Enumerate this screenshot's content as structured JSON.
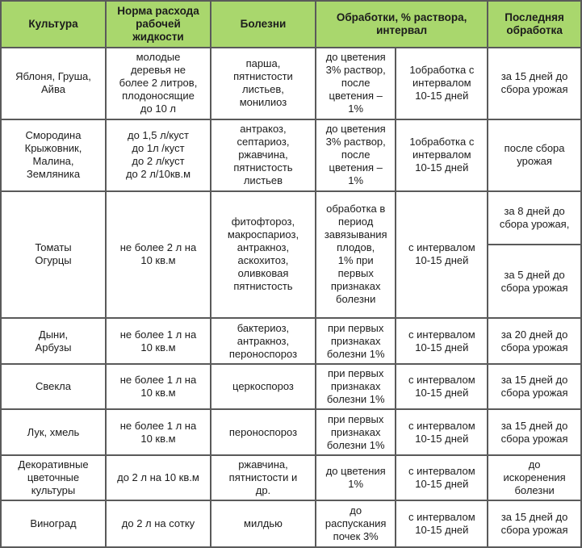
{
  "table": {
    "headers": [
      "Культура",
      "Норма расхода\nрабочей\nжидкости",
      "Болезни",
      "Обработки, % раствора,\nинтервал",
      "Последняя\nобработка"
    ],
    "rows": [
      {
        "crop": "Яблоня, Груша,\nАйва",
        "rate": "молодые\nдеревья не\nболее 2 литров,\nплодоносящие\nдо 10 л",
        "diseases": "парша,\nпятнистости\nлистьев,\nмонилиоз",
        "solution": "до цветения\n3% раствор,\nпосле\nцветения –\n1%",
        "interval": "1обработка с\nинтервалом\n10-15 дней",
        "last": "за 15 дней до\nсбора урожая"
      },
      {
        "crop": "Смородина\nКрыжовник,\nМалина,\nЗемляника",
        "rate": "до 1,5 л/куст\nдо 1л /куст\nдо 2 л/куст\nдо 2 л/10кв.м",
        "diseases": "антракоз,\nсептариоз,\nржавчина,\nпятнистость\nлистьев",
        "solution": "до цветения\n3% раствор,\nпосле\nцветения –\n1%",
        "interval": "1обработка с\nинтервалом\n10-15 дней",
        "last": "после сбора\nурожая"
      },
      {
        "crop": "Томаты\nОгурцы",
        "rate": "не более 2 л на\n10 кв.м",
        "diseases": "фитофтороз,\nмакроспариоз,\nантракноз,\nаскохитоз,\nоливковая\nпятнистость",
        "solution": "обработка в\nпериод\nзавязывания\nплодов,\n1% при\nпервых\nпризнаках\nболезни",
        "interval": "с интервалом\n10-15 дней",
        "last": "за 8 дней до\nсбора урожая,",
        "last2": "за 5 дней до\nсбора урожая"
      },
      {
        "crop": "Дыни,\nАрбузы",
        "rate": "не более 1 л на\n10 кв.м",
        "diseases": "бактериоз,\nантракноз,\nпероноспороз",
        "solution": "при первых\nпризнаках\nболезни 1%",
        "interval": "с интервалом\n10-15 дней",
        "last": "за 20 дней до\nсбора урожая"
      },
      {
        "crop": "Свекла",
        "rate": "не более 1 л на\n10 кв.м",
        "diseases": "церкоспороз",
        "solution": "при первых\nпризнаках\nболезни 1%",
        "interval": "с интервалом\n10-15 дней",
        "last": "за 15 дней до\nсбора урожая"
      },
      {
        "crop": "Лук, хмель",
        "rate": "не более 1 л на\n10 кв.м",
        "diseases": "пероноспороз",
        "solution": "при первых\nпризнаках\nболезни 1%",
        "interval": "с интервалом\n10-15 дней",
        "last": "за 15 дней до\nсбора урожая"
      },
      {
        "crop": "Декоративные\nцветочные\nкультуры",
        "rate": "до 2 л на 10 кв.м",
        "diseases": "ржавчина,\nпятнистости и\nдр.",
        "solution": "до цветения\n1%",
        "interval": "с интервалом\n10-15 дней",
        "last": "до\nискоренения\nболезни"
      },
      {
        "crop": "Виноград",
        "rate": "до 2 л на сотку",
        "diseases": "милдью",
        "solution": "до\nраспускания\nпочек 3%",
        "interval": "с интервалом\n10-15 дней",
        "last": "за 15 дней до\nсбора урожая"
      }
    ]
  }
}
